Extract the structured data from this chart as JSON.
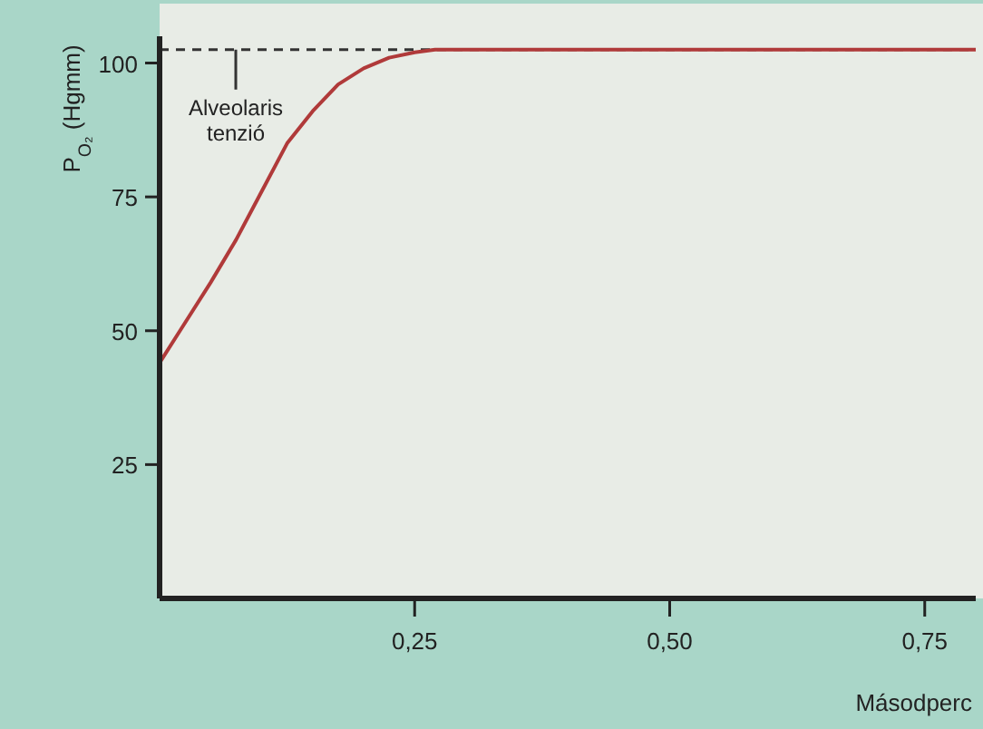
{
  "chart_data": {
    "type": "line",
    "xlabel": "Másodperc",
    "ylabel": "P$_{O₂}$ (Hgmm)",
    "x": [
      0,
      0.02,
      0.05,
      0.075,
      0.1,
      0.125,
      0.15,
      0.175,
      0.2,
      0.225,
      0.25,
      0.27,
      0.3,
      0.4,
      0.5,
      0.6,
      0.7,
      0.8
    ],
    "series": [
      {
        "color": "#b03a3a",
        "values": [
          44,
          50,
          59,
          67,
          76,
          85,
          91,
          96,
          99,
          101,
          102,
          102.5,
          102.5,
          102.5,
          102.5,
          102.5,
          102.5,
          102.5
        ]
      }
    ],
    "xlim": [
      0,
      0.8
    ],
    "ylim": [
      0,
      105
    ],
    "xticks": [
      {
        "value": 0.25,
        "label": "0,25"
      },
      {
        "value": 0.5,
        "label": "0,50"
      },
      {
        "value": 0.75,
        "label": "0,75"
      }
    ],
    "yticks": [
      25,
      50,
      75,
      100
    ],
    "ref_lines": [
      {
        "axis": "y",
        "value": 102.5,
        "label": "Alveolaris tenzió",
        "color": "#333333",
        "line_style": "dashed"
      }
    ],
    "grid": false,
    "marker": "none",
    "line_style": "solid"
  }
}
